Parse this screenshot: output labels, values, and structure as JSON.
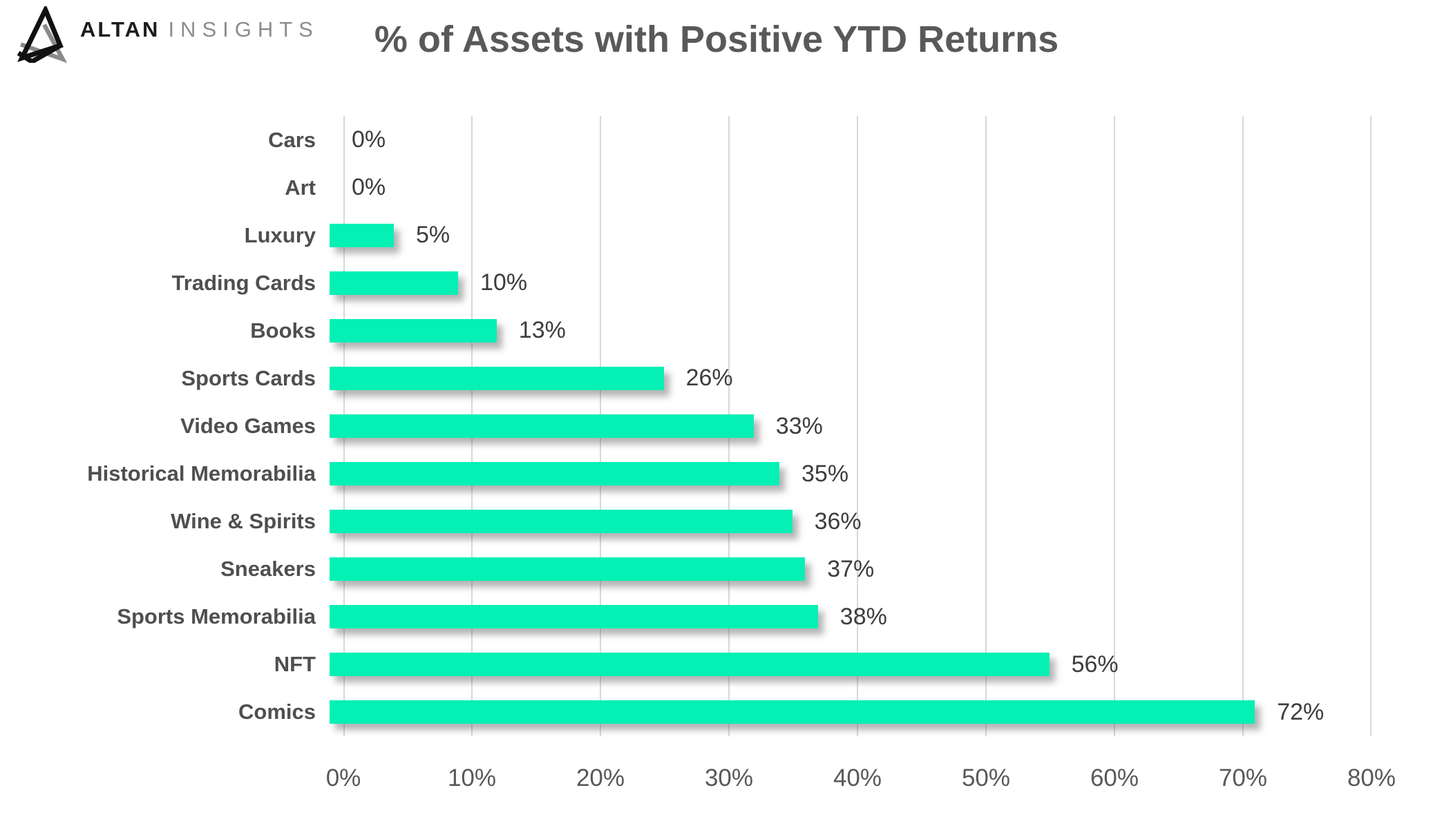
{
  "logo": {
    "brand_primary": "ALTAN",
    "brand_secondary": "INSIGHTS"
  },
  "header": {
    "title": "% of Assets with Positive YTD Returns"
  },
  "chart_data": {
    "type": "bar",
    "orientation": "horizontal",
    "title": "% of Assets with Positive YTD Returns",
    "categories": [
      "Cars",
      "Art",
      "Luxury",
      "Trading Cards",
      "Books",
      "Sports Cards",
      "Video Games",
      "Historical Memorabilia",
      "Wine & Spirits",
      "Sneakers",
      "Sports Memorabilia",
      "NFT",
      "Comics"
    ],
    "values": [
      0,
      0,
      5,
      10,
      13,
      26,
      33,
      35,
      36,
      37,
      38,
      56,
      72
    ],
    "value_labels": [
      "0%",
      "0%",
      "5%",
      "10%",
      "13%",
      "26%",
      "33%",
      "35%",
      "36%",
      "37%",
      "38%",
      "56%",
      "72%"
    ],
    "x_tick_labels": [
      "0%",
      "10%",
      "20%",
      "30%",
      "40%",
      "50%",
      "60%",
      "70%",
      "80%"
    ],
    "xlim": [
      0,
      80
    ],
    "xlabel": "",
    "ylabel": "",
    "grid": true,
    "legend": false,
    "bar_color": "#05f0b5",
    "gridline_color": "#d8d8d8",
    "label_color": "#4f4f4f",
    "title_color": "#595959"
  }
}
